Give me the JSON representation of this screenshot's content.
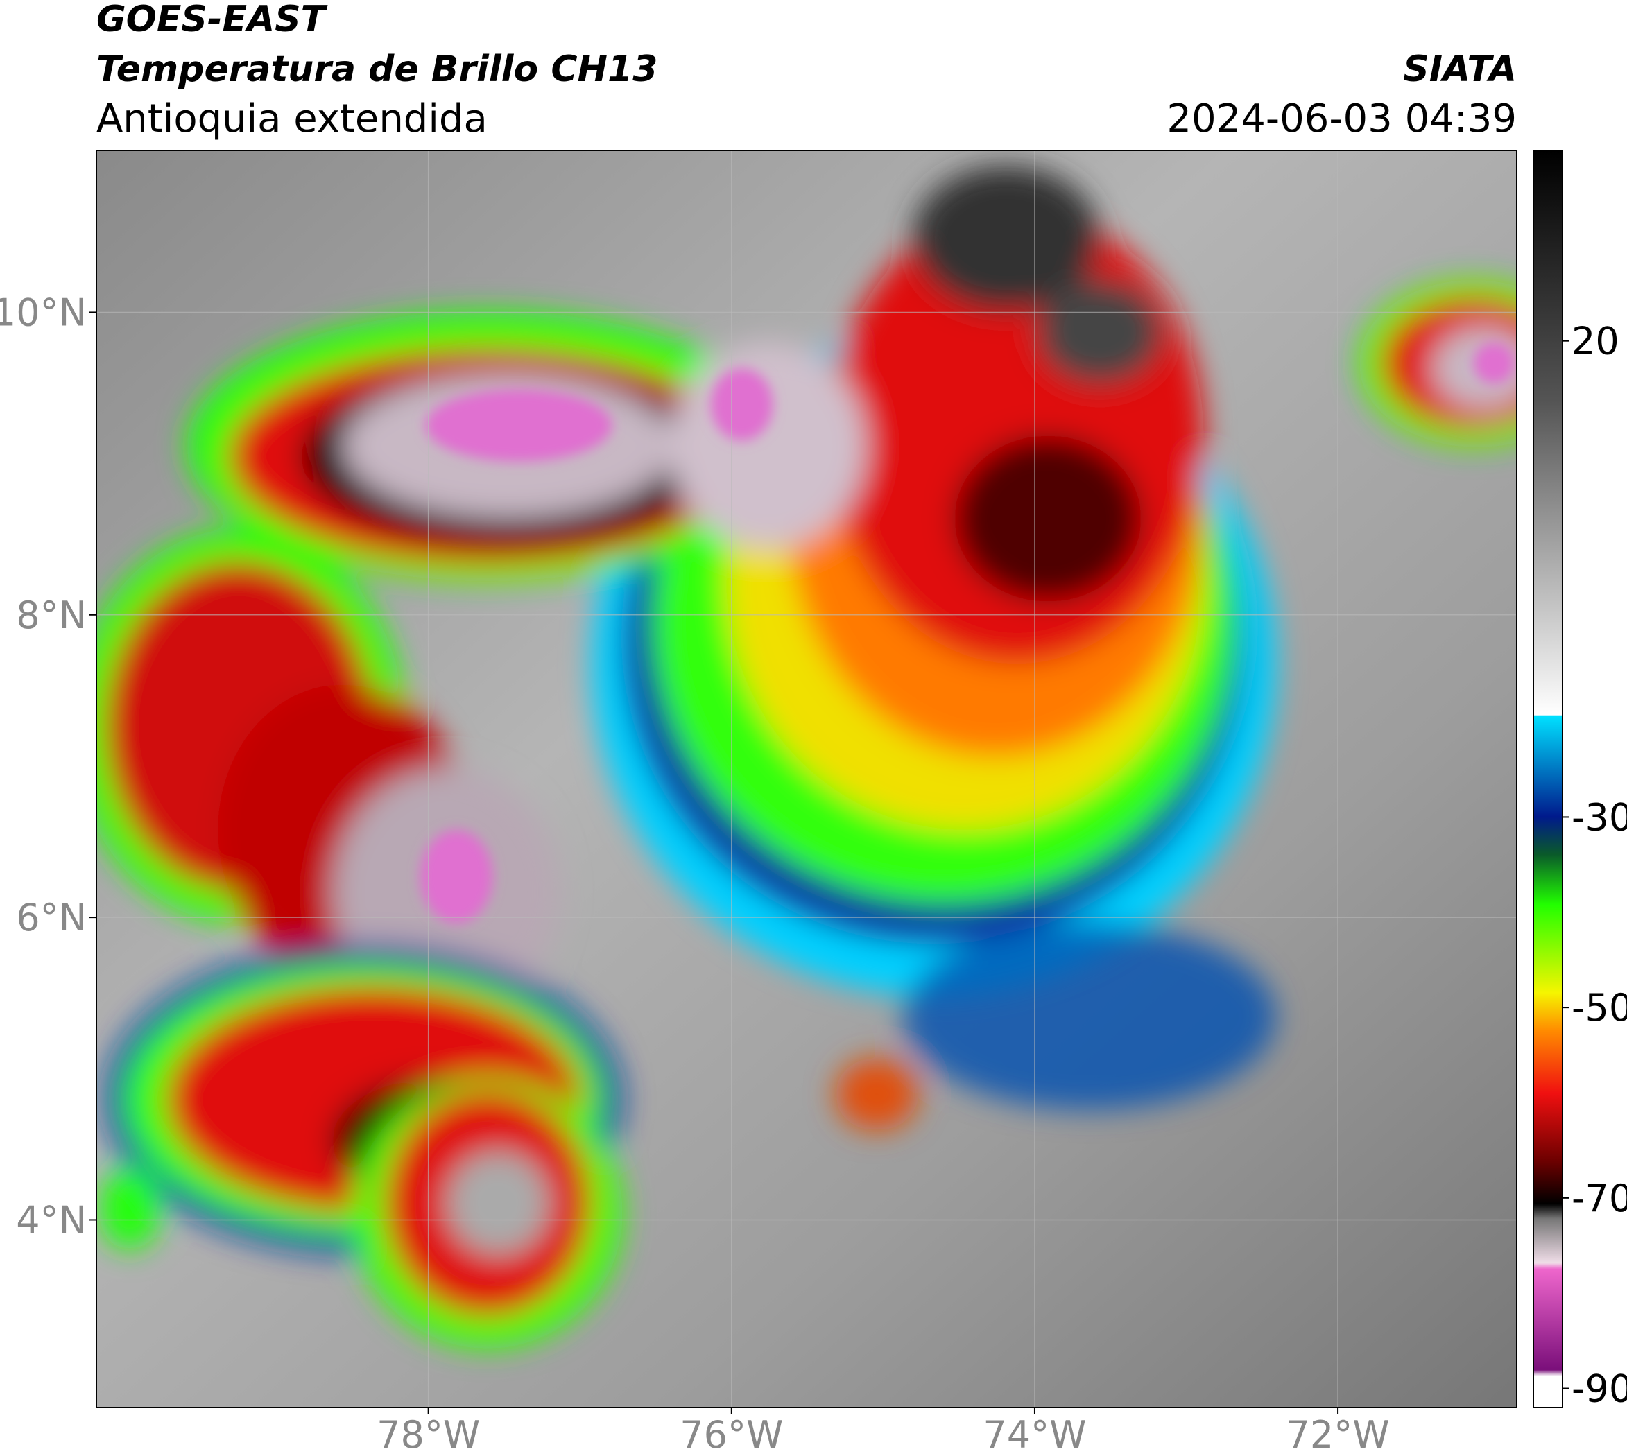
{
  "header": {
    "title": "GOES-EAST",
    "subtitle": "Temperatura de Brillo CH13",
    "region": "Antioquia extendida",
    "source": "SIATA",
    "datetime": "2024-06-03 04:39"
  },
  "map": {
    "xlim": [
      -80.19,
      -70.82
    ],
    "ylim": [
      2.76,
      11.07
    ],
    "xticks": [
      {
        "value": -78,
        "label": "78°W"
      },
      {
        "value": -76,
        "label": "76°W"
      },
      {
        "value": -74,
        "label": "74°W"
      },
      {
        "value": -72,
        "label": "72°W"
      }
    ],
    "yticks": [
      {
        "value": 4,
        "label": "4°N"
      },
      {
        "value": 6,
        "label": "6°N"
      },
      {
        "value": 8,
        "label": "8°N"
      },
      {
        "value": 10,
        "label": "10°N"
      }
    ]
  },
  "colorbar": {
    "lim": [
      -92,
      40
    ],
    "ticks": [
      20,
      -30,
      -50,
      -70,
      -90
    ]
  }
}
